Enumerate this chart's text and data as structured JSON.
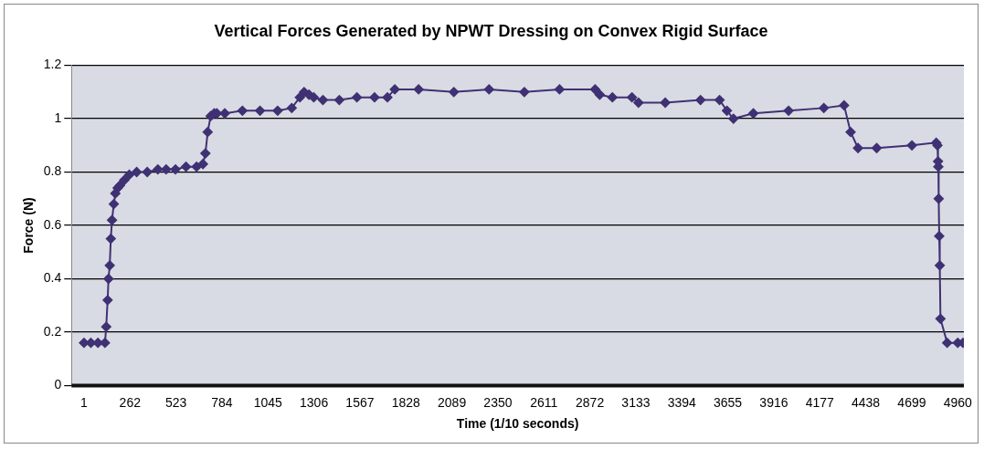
{
  "chart_data": {
    "type": "line",
    "title": "Vertical Forces Generated by NPWT Dressing on Convex Rigid Surface",
    "xlabel": "Time (1/10 seconds)",
    "ylabel": "Force (N)",
    "x": [
      1,
      40,
      80,
      120,
      127,
      135,
      140,
      147,
      153,
      160,
      170,
      179,
      192,
      205,
      230,
      258,
      300,
      360,
      420,
      467,
      520,
      580,
      640,
      676,
      690,
      703,
      720,
      740,
      755,
      800,
      900,
      1000,
      1100,
      1180,
      1226,
      1250,
      1278,
      1305,
      1357,
      1450,
      1550,
      1650,
      1723,
      1765,
      1900,
      2100,
      2300,
      2500,
      2700,
      2902,
      2928,
      3000,
      3111,
      3148,
      3300,
      3500,
      3608,
      3650,
      3687,
      3800,
      4000,
      4200,
      4315,
      4352,
      4394,
      4500,
      4700,
      4838,
      4845,
      4848,
      4850,
      4852,
      4855,
      4858,
      4862,
      4900,
      4960,
      4990
    ],
    "series": [
      {
        "color": "#3f3173",
        "values": [
          0.16,
          0.16,
          0.16,
          0.16,
          0.22,
          0.32,
          0.4,
          0.45,
          0.55,
          0.62,
          0.68,
          0.72,
          0.74,
          0.75,
          0.77,
          0.79,
          0.8,
          0.8,
          0.81,
          0.81,
          0.81,
          0.82,
          0.82,
          0.83,
          0.87,
          0.95,
          1.01,
          1.02,
          1.02,
          1.02,
          1.03,
          1.03,
          1.03,
          1.04,
          1.08,
          1.1,
          1.09,
          1.08,
          1.07,
          1.07,
          1.08,
          1.08,
          1.08,
          1.11,
          1.11,
          1.1,
          1.11,
          1.1,
          1.11,
          1.11,
          1.09,
          1.08,
          1.08,
          1.06,
          1.06,
          1.07,
          1.07,
          1.03,
          1.0,
          1.02,
          1.03,
          1.04,
          1.05,
          0.95,
          0.89,
          0.89,
          0.9,
          0.91,
          0.9,
          0.84,
          0.82,
          0.7,
          0.56,
          0.45,
          0.25,
          0.16,
          0.16,
          0.16
        ]
      }
    ],
    "xlim": [
      -70,
      4995
    ],
    "xticks": [
      1,
      262,
      523,
      784,
      1045,
      1306,
      1567,
      1828,
      2089,
      2350,
      2611,
      2872,
      3133,
      3394,
      3655,
      3916,
      4177,
      4438,
      4699,
      4960
    ],
    "ylim": [
      0,
      1.2
    ],
    "yticks": [
      0,
      0.2,
      0.4,
      0.6,
      0.8,
      1,
      1.2
    ],
    "grid": "y",
    "legend": false,
    "marker": "diamond",
    "line_style": "solid"
  }
}
